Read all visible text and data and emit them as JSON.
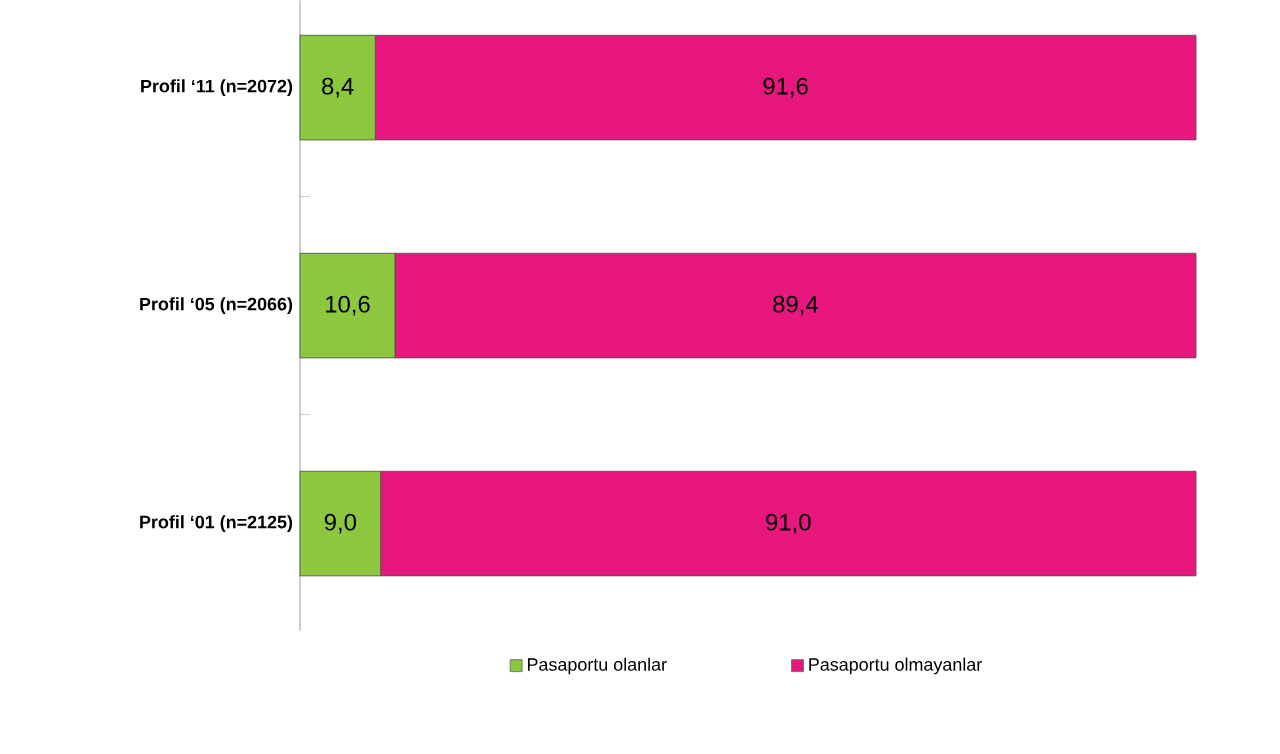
{
  "chart_data": {
    "type": "bar",
    "orientation": "horizontal",
    "stacked": true,
    "legend": "bottom",
    "categories": [
      "Profil ‘11 (n=2072)",
      "Profil ‘05 (n=2066)",
      "Profil ‘01 (n=2125)"
    ],
    "series": [
      {
        "name": "Pasaportu olanlar",
        "color": "#8dc63f",
        "values": [
          8.4,
          10.6,
          9.0
        ],
        "value_labels": [
          "8,4",
          "10,6",
          "9,0"
        ]
      },
      {
        "name": "Pasaportu olmayanlar",
        "color": "#e8177d",
        "values": [
          91.6,
          89.4,
          91.0
        ],
        "value_labels": [
          "91,6",
          "89,4",
          "91,0"
        ]
      }
    ]
  }
}
